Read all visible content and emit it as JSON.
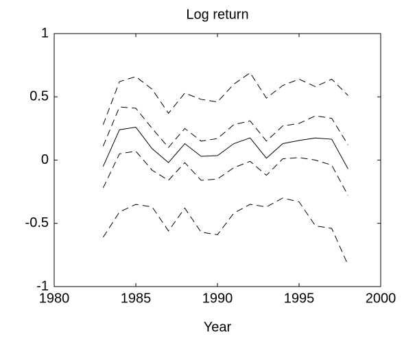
{
  "chart_data": {
    "type": "line",
    "title": "Log return",
    "xlabel": "Year",
    "x": [
      1983,
      1984,
      1985,
      1986,
      1987,
      1988,
      1989,
      1990,
      1991,
      1992,
      1993,
      1994,
      1995,
      1996,
      1997,
      1998
    ],
    "series": [
      {
        "color": "#000000",
        "dashed": true,
        "values": [
          0.28,
          0.62,
          0.66,
          0.56,
          0.37,
          0.53,
          0.48,
          0.46,
          0.6,
          0.69,
          0.49,
          0.59,
          0.64,
          0.58,
          0.64,
          0.51
        ]
      },
      {
        "color": "#000000",
        "dashed": true,
        "values": [
          0.11,
          0.42,
          0.41,
          0.25,
          0.1,
          0.25,
          0.15,
          0.17,
          0.28,
          0.31,
          0.15,
          0.27,
          0.29,
          0.35,
          0.33,
          0.12
        ]
      },
      {
        "color": "#000000",
        "dashed": false,
        "values": [
          -0.05,
          0.24,
          0.26,
          0.09,
          -0.02,
          0.13,
          0.03,
          0.035,
          0.13,
          0.175,
          0.015,
          0.13,
          0.155,
          0.175,
          0.165,
          -0.07
        ]
      },
      {
        "color": "#000000",
        "dashed": true,
        "values": [
          -0.22,
          0.05,
          0.07,
          -0.08,
          -0.16,
          -0.02,
          -0.16,
          -0.15,
          -0.06,
          -0.01,
          -0.12,
          0.01,
          0.02,
          0.0,
          -0.04,
          -0.28
        ]
      },
      {
        "color": "#000000",
        "dashed": true,
        "values": [
          -0.61,
          -0.41,
          -0.35,
          -0.37,
          -0.56,
          -0.38,
          -0.57,
          -0.59,
          -0.42,
          -0.35,
          -0.37,
          -0.3,
          -0.33,
          -0.52,
          -0.54,
          -0.83
        ]
      }
    ],
    "xlim": [
      1980,
      2000
    ],
    "xticks": [
      1980,
      1985,
      1990,
      1995,
      2000
    ],
    "ylim": [
      -1,
      1
    ],
    "yticks": [
      -1,
      -0.5,
      0,
      0.5,
      1
    ],
    "grid": false
  }
}
